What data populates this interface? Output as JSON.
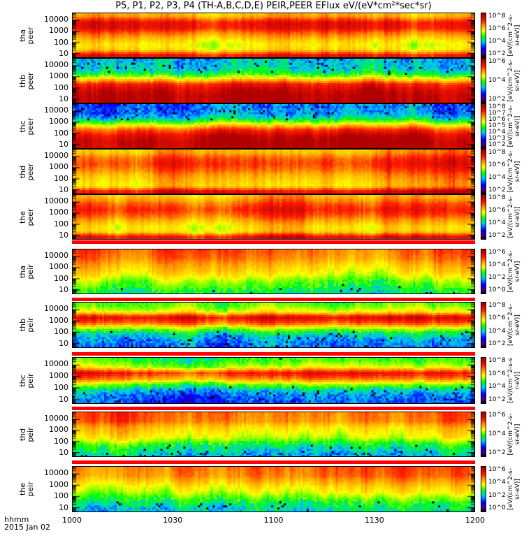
{
  "chart_data": {
    "type": "heatmap",
    "title": "P5, P1, P2, P3, P4 (TH-A,B,C,D,E) PEIR,PEER EFlux eV/(eV*cm²*sec*sr)",
    "xlabel": "hhmm",
    "date": "2015 Jan 02",
    "x_ticks": [
      "1000",
      "1030",
      "1100",
      "1130",
      "1200"
    ],
    "y_scale": "log",
    "y_ticks": [
      "10000",
      "1000",
      "100",
      "10"
    ],
    "profile_energies_eV": [
      7,
      20,
      60,
      200,
      600,
      2000,
      6000,
      25000
    ],
    "colormap": [
      "#000000",
      "#4b0082",
      "#0000ff",
      "#00c8ff",
      "#00ff00",
      "#ffff00",
      "#ff9900",
      "#ff1a00",
      "#b00000"
    ],
    "band_color": "#ff0000",
    "panels": [
      {
        "probe": "tha",
        "instrument": "peer",
        "cb_ticks": [
          "10^8",
          "10^6",
          "10^4",
          "10^2"
        ],
        "cb_label": "[eV/(cm^2-s-sr-eV)]",
        "profile": [
          0.85,
          0.63,
          0.6,
          0.66,
          0.74,
          0.86,
          0.86,
          0.68
        ]
      },
      {
        "probe": "thb",
        "instrument": "peer",
        "cb_ticks": [
          "10^6",
          "10^4",
          "10^2"
        ],
        "cb_label": "[eV/(cm^2-s-sr-eV)]",
        "profile": [
          0.95,
          0.95,
          0.92,
          0.84,
          0.64,
          0.44,
          0.37,
          0.35
        ]
      },
      {
        "probe": "thc",
        "instrument": "peer",
        "cb_ticks": [
          "10^8",
          "10^7",
          "10^6",
          "10^5",
          "10^4",
          "10^3",
          "10^2"
        ],
        "cb_label": "[eV/(cm^2-s-sr-eV)]",
        "profile": [
          0.95,
          0.95,
          0.91,
          0.8,
          0.6,
          0.38,
          0.3,
          0.28
        ]
      },
      {
        "probe": "thd",
        "instrument": "peer",
        "cb_ticks": [
          "10^8",
          "10^6",
          "10^4",
          "10^2"
        ],
        "cb_label": "[eV/(cm^2-s-sr-eV)]",
        "profile": [
          0.88,
          0.66,
          0.68,
          0.72,
          0.78,
          0.83,
          0.8,
          0.7
        ]
      },
      {
        "probe": "the",
        "instrument": "peer",
        "cb_ticks": [
          "10^8",
          "10^6",
          "10^4",
          "10^2"
        ],
        "cb_label": "[eV/(cm^2-s-sr-eV)]",
        "profile": [
          0.88,
          0.65,
          0.65,
          0.72,
          0.8,
          0.85,
          0.8,
          0.7
        ]
      },
      {
        "probe": "tha",
        "instrument": "peir",
        "cb_ticks": [
          "10^6",
          "10^4",
          "10^2",
          "10^0"
        ],
        "cb_label": "[eV/(cm^2-s-sr-eV)]",
        "profile": [
          0.45,
          0.5,
          0.55,
          0.62,
          0.66,
          0.7,
          0.75,
          0.78
        ]
      },
      {
        "probe": "thb",
        "instrument": "peir",
        "cb_ticks": [
          "10^8",
          "10^6",
          "10^4",
          "10^2"
        ],
        "cb_label": "[eV/(cm^2-s-sr-eV)]",
        "profile": [
          0.28,
          0.31,
          0.37,
          0.55,
          0.76,
          0.88,
          0.6,
          0.5
        ]
      },
      {
        "probe": "thc",
        "instrument": "peir",
        "cb_ticks": [
          "10^8",
          "10^6",
          "10^4",
          "10^2"
        ],
        "cb_label": "[eV/(cm^2-s-sr-eV)]",
        "profile": [
          0.28,
          0.31,
          0.38,
          0.56,
          0.76,
          0.87,
          0.6,
          0.5
        ]
      },
      {
        "probe": "thd",
        "instrument": "peir",
        "cb_ticks": [
          "10^6",
          "10^4",
          "10^2"
        ],
        "cb_label": "[eV/(cm^2-s-sr-eV)]",
        "profile": [
          0.35,
          0.4,
          0.48,
          0.58,
          0.62,
          0.66,
          0.74,
          0.76
        ]
      },
      {
        "probe": "the",
        "instrument": "peir",
        "cb_ticks": [
          "10^6",
          "10^4",
          "10^2",
          "10^0"
        ],
        "cb_label": "[eV/(cm^2-s-sr-eV)]",
        "profile": [
          0.4,
          0.45,
          0.52,
          0.6,
          0.64,
          0.7,
          0.76,
          0.78
        ]
      }
    ]
  }
}
